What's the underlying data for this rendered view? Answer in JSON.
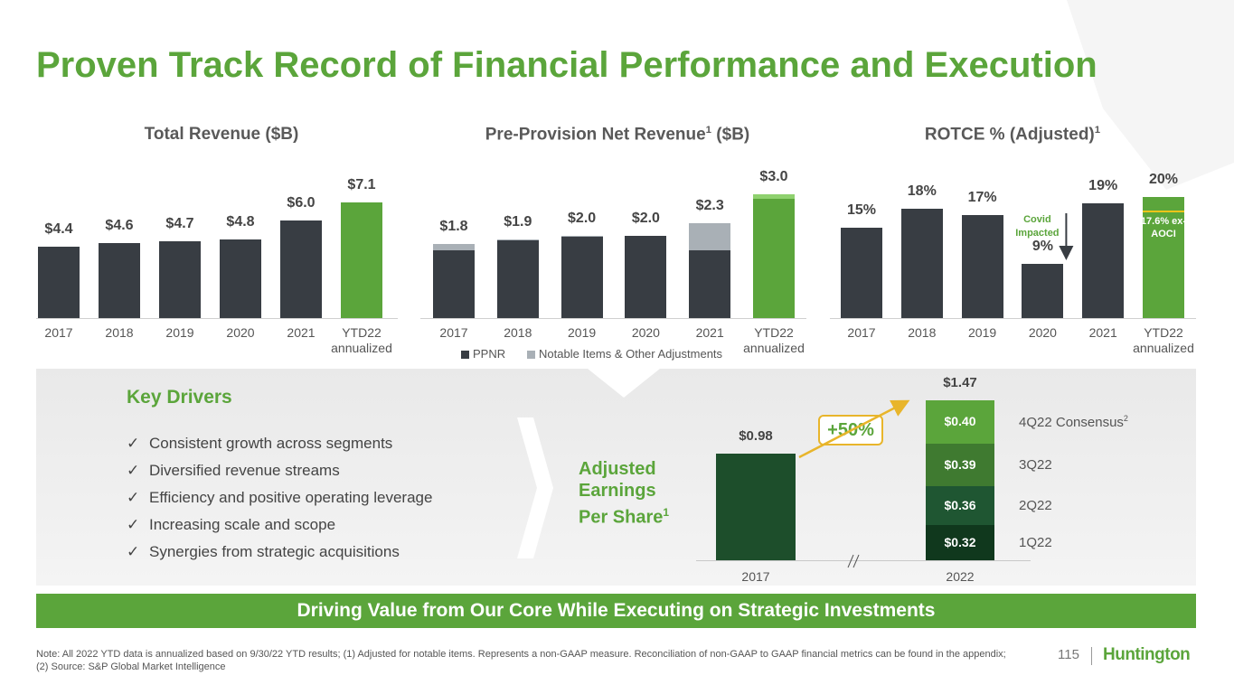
{
  "title": "Proven Track Record of Financial Performance and Execution",
  "chart_data": [
    {
      "type": "bar",
      "title": "Total Revenue ($B)",
      "categories": [
        "2017",
        "2018",
        "2019",
        "2020",
        "2021",
        "YTD22 annualized"
      ],
      "values": [
        4.4,
        4.6,
        4.7,
        4.8,
        6.0,
        7.1
      ],
      "value_labels": [
        "$4.4",
        "$4.6",
        "$4.7",
        "$4.8",
        "$6.0",
        "$7.1"
      ],
      "colors": [
        "#383d43",
        "#383d43",
        "#383d43",
        "#383d43",
        "#383d43",
        "#5ba53b"
      ]
    },
    {
      "type": "stacked_bar",
      "title": "Pre-Provision Net Revenue",
      "title_footnote": "1",
      "title_suffix": " ($B)",
      "categories": [
        "2017",
        "2018",
        "2019",
        "2020",
        "2021",
        "YTD22 annualized"
      ],
      "series": [
        {
          "name": "PPNR",
          "colors": [
            "#383d43",
            "#383d43",
            "#383d43",
            "#383d43",
            "#383d43",
            "#5ba53b"
          ],
          "values": [
            1.64,
            1.88,
            1.97,
            2.0,
            1.64,
            2.9
          ]
        },
        {
          "name": "Notable Items & Other Adjustments",
          "colors": [
            "#a9b0b6",
            "#a9b0b6",
            "#a9b0b6",
            "#a9b0b6",
            "#a9b0b6",
            "#8fd16f"
          ],
          "values": [
            0.16,
            0.02,
            0.03,
            0,
            0.66,
            0.1
          ]
        }
      ],
      "totals": [
        1.8,
        1.9,
        2.0,
        2.0,
        2.3,
        3.0
      ],
      "total_labels": [
        "$1.8",
        "$1.9",
        "$2.0",
        "$2.0",
        "$2.3",
        "$3.0"
      ],
      "legend": "bottom"
    },
    {
      "type": "bar",
      "title": "ROTCE % (Adjusted)",
      "title_footnote": "1",
      "categories": [
        "2017",
        "2018",
        "2019",
        "2020",
        "2021",
        "YTD22 annualized"
      ],
      "values": [
        15,
        18,
        17,
        9,
        19,
        20
      ],
      "value_labels": [
        "15%",
        "18%",
        "17%",
        "9%",
        "19%",
        "20%"
      ],
      "colors": [
        "#383d43",
        "#383d43",
        "#383d43",
        "#383d43",
        "#383d43",
        "#5ba53b"
      ],
      "annotations": [
        {
          "text": "Covid Impacted"
        },
        {
          "text": "17.6% ex-AOCI",
          "value": 17.6
        }
      ]
    },
    {
      "type": "composed_bar",
      "title": "Adjusted Earnings Per Share",
      "title_footnote": "1",
      "categories": [
        "2017",
        "2022"
      ],
      "values": [
        0.98,
        1.47
      ],
      "value_labels": [
        "$0.98",
        "$1.47"
      ],
      "color": "#1d4e2b",
      "series": [
        {
          "name": "1Q22",
          "value": 0.32,
          "value_label": "$0.32",
          "color": "#10381d"
        },
        {
          "name": "2Q22",
          "value": 0.36,
          "value_label": "$0.36",
          "color": "#1f5632"
        },
        {
          "name": "3Q22",
          "value": 0.39,
          "value_label": "$0.39",
          "color": "#3f7a30"
        },
        {
          "name": "4Q22 Consensus",
          "footnote": "2",
          "value": 0.4,
          "value_label": "$0.40",
          "color": "#5ba53b"
        }
      ],
      "growth_label": "+50%"
    }
  ],
  "key_drivers": {
    "title": "Key Drivers",
    "items": [
      "Consistent growth across segments",
      "Diversified revenue streams",
      "Efficiency and positive operating leverage",
      "Increasing scale and scope",
      "Synergies from strategic acquisitions"
    ]
  },
  "banner": "Driving Value from Our Core While Executing on Strategic Investments",
  "note": [
    "Note: All 2022 YTD data is annualized based on 9/30/22 YTD results; (1) Adjusted for notable items. Represents a non-GAAP measure. Reconciliation of non-GAAP to GAAP financial metrics can be found in the appendix;",
    "(2) Source: S&P Global Market Intelligence"
  ],
  "page_number": "115",
  "logo": "Huntington"
}
